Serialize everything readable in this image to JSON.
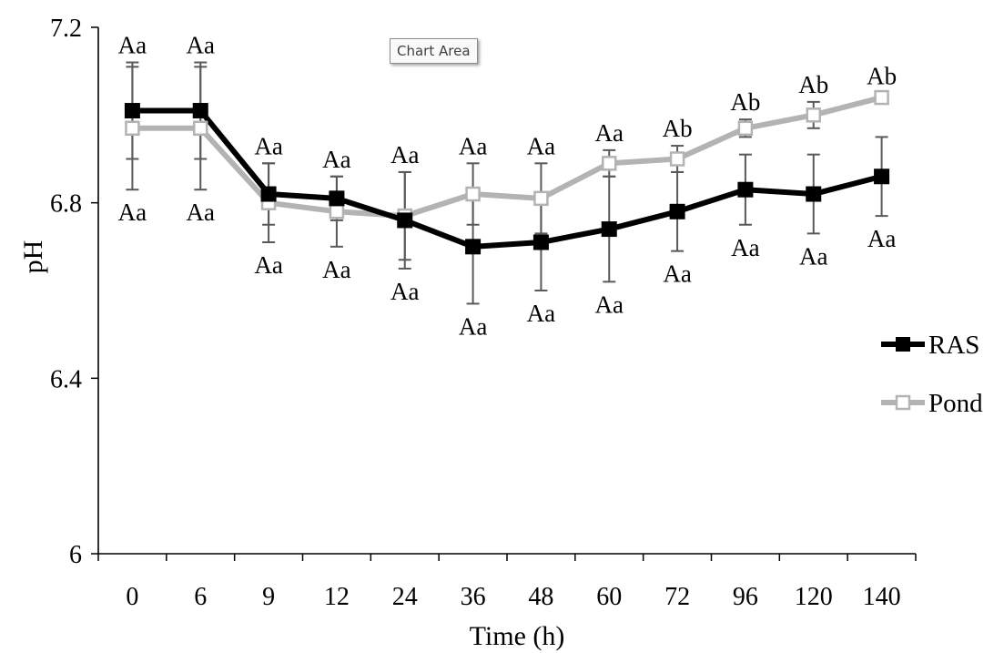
{
  "tooltip": "Chart Area",
  "chart_data": {
    "type": "line",
    "title": "",
    "xlabel": "Time (h)",
    "ylabel": "pH",
    "x": [
      "0",
      "6",
      "9",
      "12",
      "24",
      "36",
      "48",
      "60",
      "72",
      "96",
      "120",
      "140"
    ],
    "ylim": [
      6,
      7.2
    ],
    "yticks": [
      "6",
      "6.4",
      "6.8",
      "7.2"
    ],
    "legend": "right",
    "series": [
      {
        "name": "RAS",
        "color": "#000000",
        "marker": "filled-square",
        "values": [
          7.01,
          7.01,
          6.82,
          6.81,
          6.76,
          6.7,
          6.71,
          6.74,
          6.78,
          6.83,
          6.82,
          6.86
        ],
        "error": [
          0.11,
          0.11,
          0.07,
          0.05,
          0.11,
          0.13,
          0.11,
          0.12,
          0.09,
          0.08,
          0.09,
          0.09
        ],
        "labels": [
          "Aa",
          "Aa",
          "Aa",
          "Aa",
          "Aa",
          "Aa",
          "Aa",
          "Aa",
          "Aa",
          "Aa",
          "Aa",
          "Aa"
        ]
      },
      {
        "name": "Pond",
        "color": "#b3b3b3",
        "marker": "open-square",
        "values": [
          6.97,
          6.97,
          6.8,
          6.78,
          6.77,
          6.82,
          6.81,
          6.89,
          6.9,
          6.97,
          7.0,
          7.04
        ],
        "error": [
          0.14,
          0.14,
          0.09,
          0.08,
          0.1,
          0.07,
          0.08,
          0.03,
          0.03,
          0.02,
          0.03,
          0.01
        ],
        "labels": [
          "Aa",
          "Aa",
          "Aa",
          "Aa",
          "Aa",
          "Aa",
          "Aa",
          "Aa",
          "Ab",
          "Ab",
          "Ab",
          "Ab"
        ]
      }
    ]
  }
}
